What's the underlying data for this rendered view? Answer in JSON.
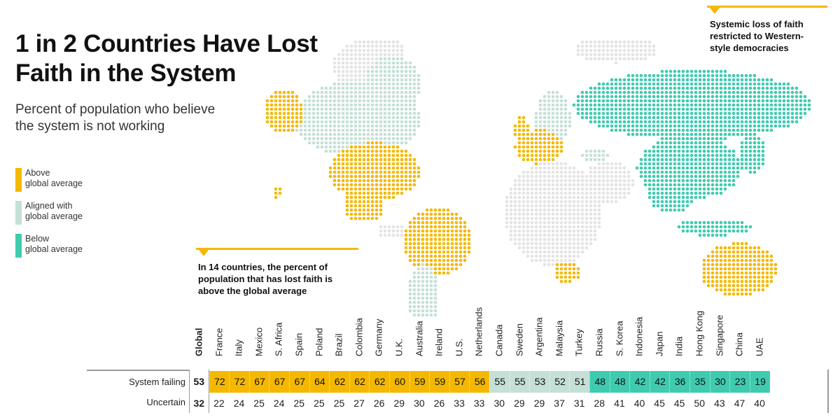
{
  "title_line1": "1 in 2 Countries Have Lost",
  "title_line2": "Faith in the System",
  "subtitle_line1": "Percent of population who believe",
  "subtitle_line2": "the system is not working",
  "legend": [
    {
      "line1": "Above",
      "line2": "global average",
      "color": "#F5B800"
    },
    {
      "line1": "Aligned with",
      "line2": "global average",
      "color": "#C5E0D6"
    },
    {
      "line1": "Below",
      "line2": "global average",
      "color": "#3FCBB0"
    }
  ],
  "annotations": {
    "top_right": [
      "Systemic loss of faith",
      "restricted to Western-",
      "style democracies"
    ],
    "bottom_left": [
      "In 14 countries, the percent of",
      "population that has lost faith is",
      "above the global average"
    ]
  },
  "colors": {
    "above": "#F5B800",
    "aligned": "#C5E0D6",
    "below": "#3FCBB0",
    "no_data": "#E4E4E4"
  },
  "chart_data": {
    "type": "table",
    "row_labels": [
      "System failing",
      "Uncertain"
    ],
    "global": {
      "label": "Global",
      "system_failing": 53,
      "uncertain": 32
    },
    "countries": [
      {
        "name": "France",
        "system_failing": 72,
        "uncertain": 22,
        "group": "above"
      },
      {
        "name": "Italy",
        "system_failing": 72,
        "uncertain": 24,
        "group": "above"
      },
      {
        "name": "Mexico",
        "system_failing": 67,
        "uncertain": 25,
        "group": "above"
      },
      {
        "name": "S. Africa",
        "system_failing": 67,
        "uncertain": 24,
        "group": "above"
      },
      {
        "name": "Spain",
        "system_failing": 67,
        "uncertain": 25,
        "group": "above"
      },
      {
        "name": "Poland",
        "system_failing": 64,
        "uncertain": 25,
        "group": "above"
      },
      {
        "name": "Brazil",
        "system_failing": 62,
        "uncertain": 25,
        "group": "above"
      },
      {
        "name": "Colombia",
        "system_failing": 62,
        "uncertain": 27,
        "group": "above"
      },
      {
        "name": "Germany",
        "system_failing": 62,
        "uncertain": 26,
        "group": "above"
      },
      {
        "name": "U.K.",
        "system_failing": 60,
        "uncertain": 29,
        "group": "above"
      },
      {
        "name": "Australia",
        "system_failing": 59,
        "uncertain": 30,
        "group": "above"
      },
      {
        "name": "Ireland",
        "system_failing": 59,
        "uncertain": 26,
        "group": "above"
      },
      {
        "name": "U.S.",
        "system_failing": 57,
        "uncertain": 33,
        "group": "above"
      },
      {
        "name": "Netherlands",
        "system_failing": 56,
        "uncertain": 33,
        "group": "above"
      },
      {
        "name": "Canada",
        "system_failing": 55,
        "uncertain": 30,
        "group": "aligned"
      },
      {
        "name": "Sweden",
        "system_failing": 55,
        "uncertain": 29,
        "group": "aligned"
      },
      {
        "name": "Argentina",
        "system_failing": 53,
        "uncertain": 29,
        "group": "aligned"
      },
      {
        "name": "Malaysia",
        "system_failing": 52,
        "uncertain": 37,
        "group": "aligned"
      },
      {
        "name": "Turkey",
        "system_failing": 51,
        "uncertain": 31,
        "group": "aligned"
      },
      {
        "name": "Russia",
        "system_failing": 48,
        "uncertain": 28,
        "group": "below"
      },
      {
        "name": "S. Korea",
        "system_failing": 48,
        "uncertain": 41,
        "group": "below"
      },
      {
        "name": "Indonesia",
        "system_failing": 42,
        "uncertain": 40,
        "group": "below"
      },
      {
        "name": "Japan",
        "system_failing": 42,
        "uncertain": 45,
        "group": "below"
      },
      {
        "name": "India",
        "system_failing": 36,
        "uncertain": 45,
        "group": "below"
      },
      {
        "name": "Hong Kong",
        "system_failing": 35,
        "uncertain": 50,
        "group": "below"
      },
      {
        "name": "Singapore",
        "system_failing": 30,
        "uncertain": 43,
        "group": "below"
      },
      {
        "name": "China",
        "system_failing": 23,
        "uncertain": 47,
        "group": "below"
      },
      {
        "name": "UAE",
        "system_failing": 19,
        "uncertain": 40,
        "group": "below"
      }
    ]
  }
}
